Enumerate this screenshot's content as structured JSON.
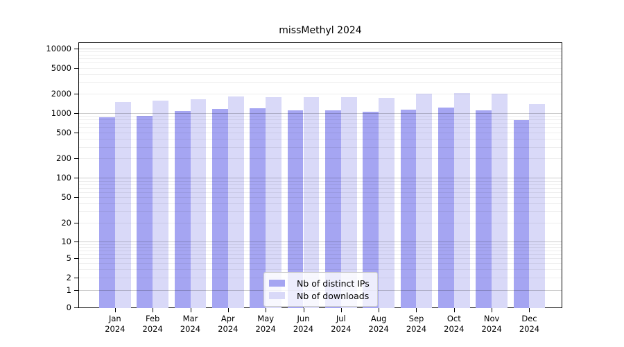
{
  "page": {
    "background_color": "#ffffff"
  },
  "chart_data": {
    "type": "bar",
    "title": "missMethyl 2024",
    "categories": [
      "Jan",
      "Feb",
      "Mar",
      "Apr",
      "May",
      "Jun",
      "Jul",
      "Aug",
      "Sep",
      "Oct",
      "Nov",
      "Dec"
    ],
    "year_label": "2024",
    "series": [
      {
        "name": "Nb of distinct IPs",
        "color": "#a5a5f2",
        "values": [
          860,
          890,
          1080,
          1140,
          1170,
          1090,
          1090,
          1050,
          1130,
          1200,
          1100,
          780
        ]
      },
      {
        "name": "Nb of downloads",
        "color": "#d9d9f8",
        "values": [
          1490,
          1560,
          1640,
          1810,
          1770,
          1770,
          1740,
          1730,
          1990,
          2020,
          2000,
          1370
        ]
      }
    ],
    "yticks": [
      10000,
      5000,
      2000,
      1000,
      500,
      200,
      100,
      50,
      20,
      10,
      5,
      2,
      1,
      0
    ],
    "yscale": "log-with-zero",
    "ylim": [
      0,
      13000
    ],
    "grid": true,
    "legend_position": "lower center",
    "legend": {
      "items": [
        {
          "label": "Nb of distinct IPs"
        },
        {
          "label": "Nb of downloads"
        }
      ]
    }
  }
}
